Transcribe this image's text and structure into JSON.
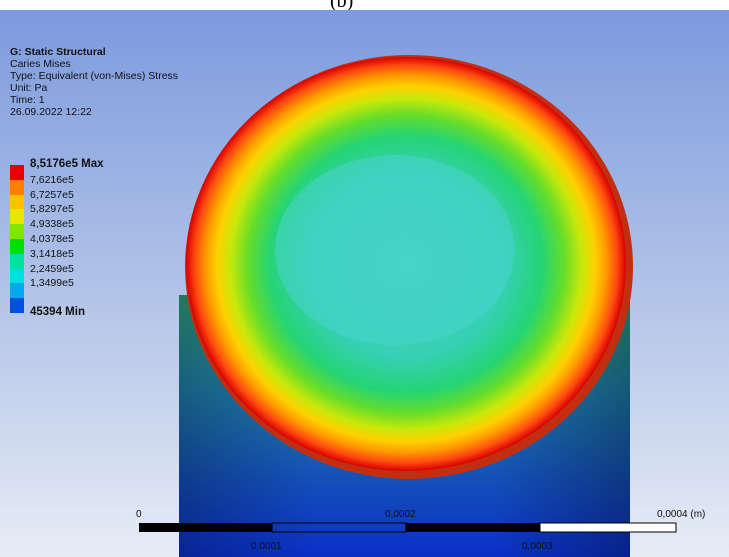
{
  "caption": "(b)",
  "info": {
    "title": "G: Static Structural",
    "result": "Caries Mises",
    "type": "Type: Equivalent (von-Mises) Stress",
    "unit": "Unit: Pa",
    "time": "Time: 1",
    "date": "26.09.2022 12:22"
  },
  "legend": {
    "max_label": "8,5176e5 Max",
    "min_label": "45394 Min",
    "labels": [
      "7,6216e5",
      "6,7257e5",
      "5,8297e5",
      "4,9338e5",
      "4,0378e5",
      "3,1418e5",
      "2,2459e5",
      "1,3499e5"
    ],
    "colors": [
      "#e60000",
      "#ff8000",
      "#ffc000",
      "#e6e600",
      "#80e600",
      "#00e000",
      "#00e0a0",
      "#00e0e0",
      "#00a8f0",
      "#0050e0"
    ]
  },
  "scale": {
    "labels_top": [
      "0",
      "0,0002",
      "0,0004 (m)"
    ],
    "labels_bottom": [
      "0,0001",
      "0,0003"
    ]
  }
}
